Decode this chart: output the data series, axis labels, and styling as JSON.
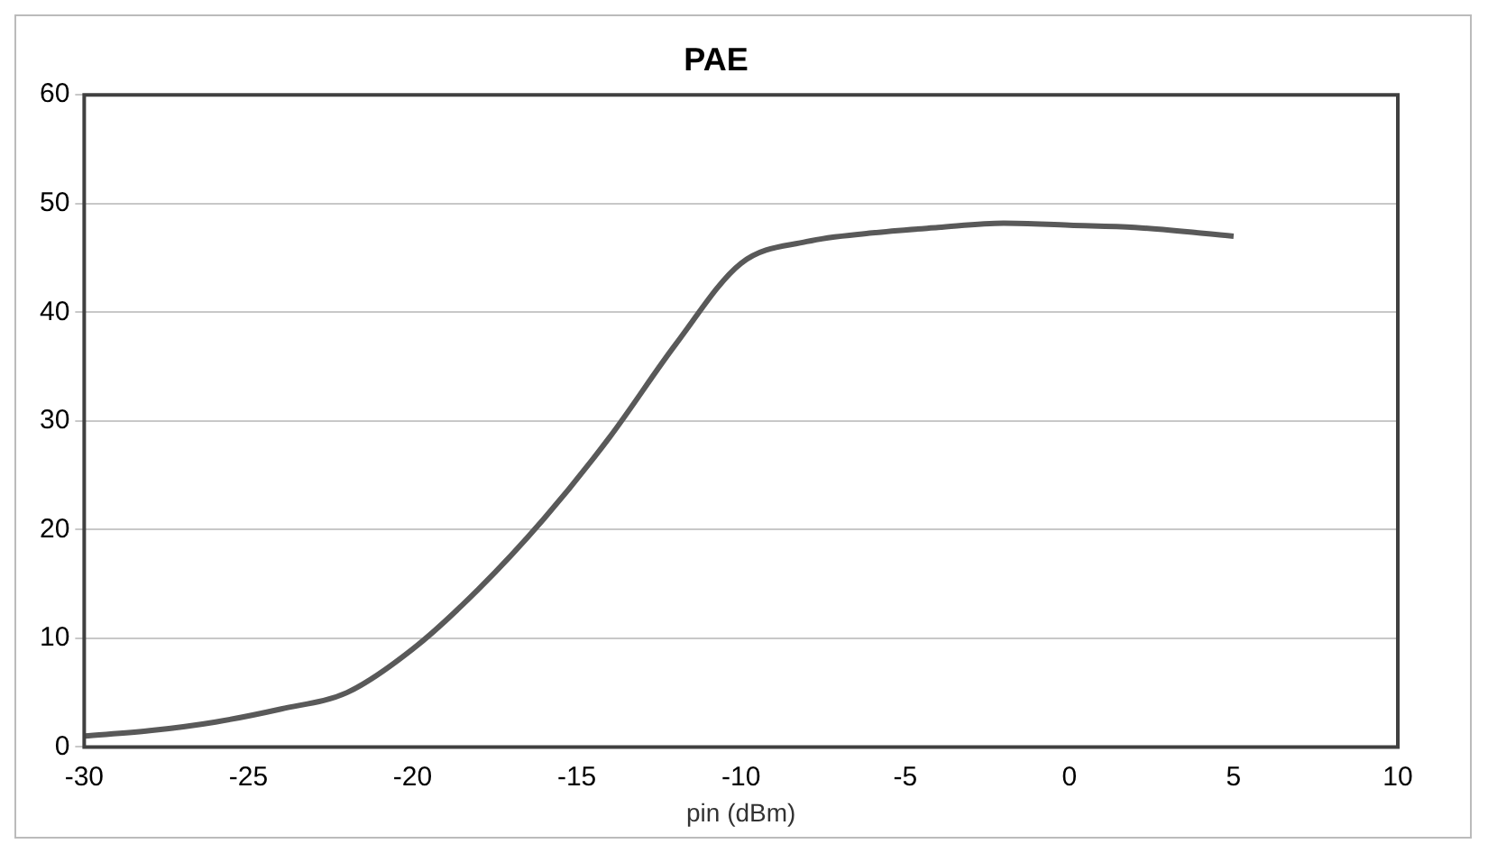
{
  "chart_data": {
    "type": "line",
    "title": "PAE",
    "xlabel": "pin (dBm)",
    "series": [
      {
        "color": "#595959",
        "x": [
          -30,
          -28,
          -26,
          -24,
          -22,
          -20,
          -18,
          -16,
          -14,
          -12,
          -10,
          -8,
          -6,
          -4,
          -2,
          0,
          2,
          5
        ],
        "values": [
          1,
          1.5,
          2.3,
          3.5,
          5,
          9,
          14.5,
          21,
          28.5,
          37,
          44.5,
          46.5,
          47.3,
          47.8,
          48.2,
          48,
          47.8,
          47
        ]
      }
    ],
    "xlim": [
      -30,
      10
    ],
    "xticks": [
      -30,
      -25,
      -20,
      -15,
      -10,
      -5,
      0,
      5,
      10
    ],
    "ylim": [
      0,
      60
    ],
    "yticks": [
      0,
      10,
      20,
      30,
      40,
      50,
      60
    ],
    "grid": "y",
    "legend": false,
    "marker": "none",
    "line_style": "solid"
  }
}
